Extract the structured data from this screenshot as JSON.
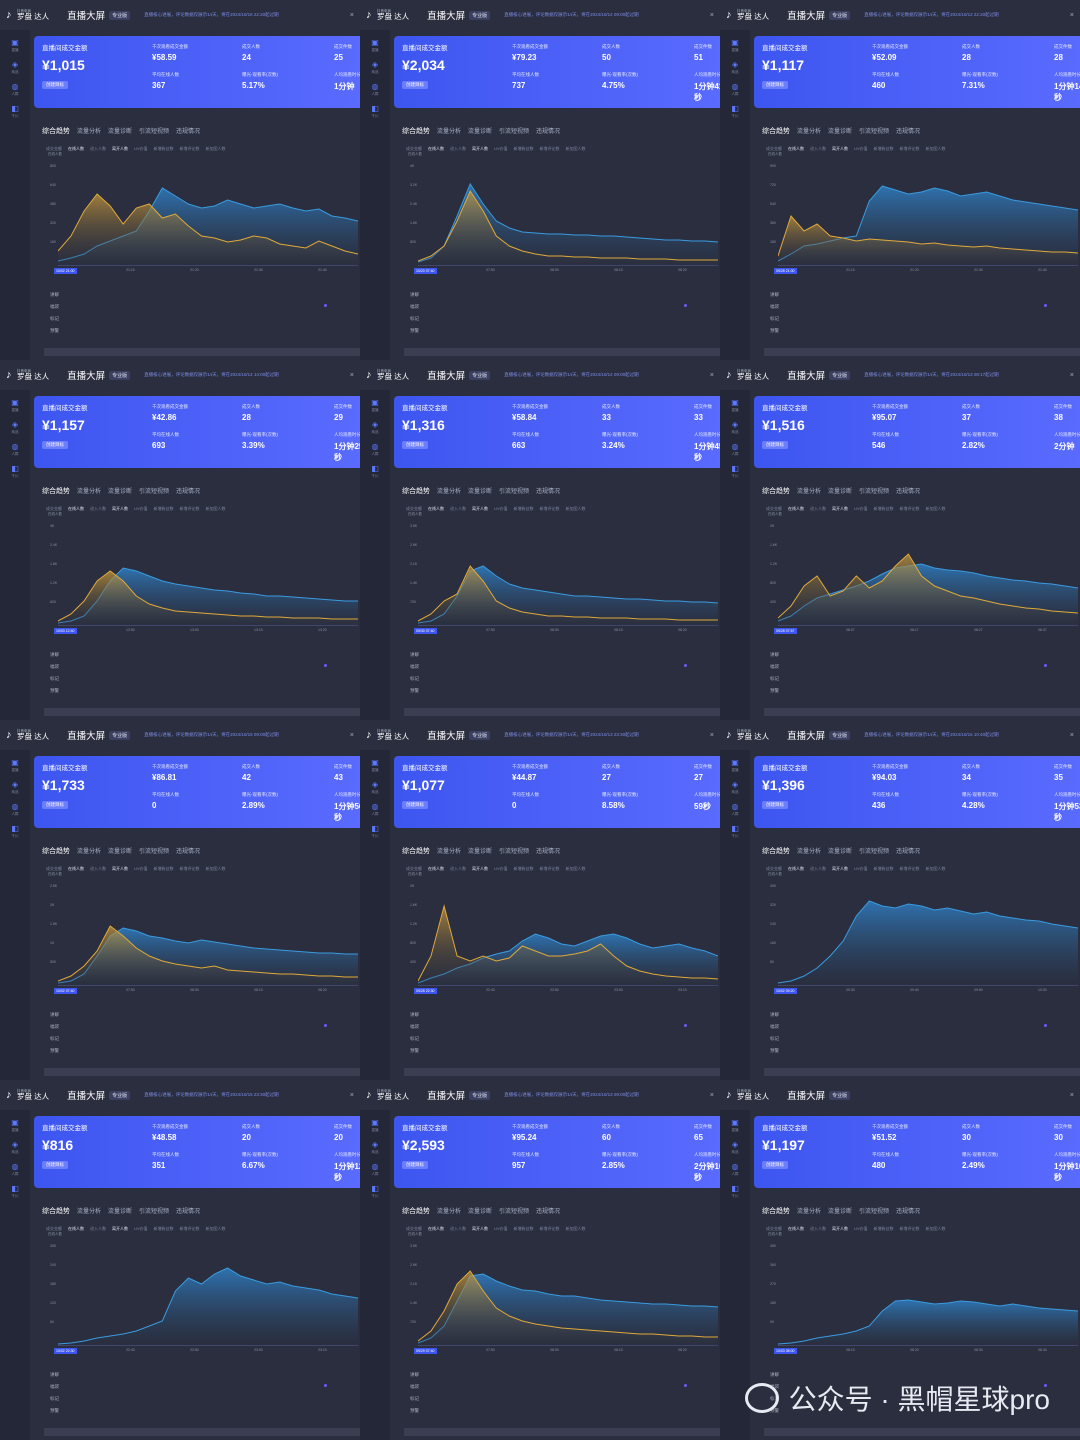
{
  "common": {
    "app_small": "抖音电商",
    "app_name": "罗盘 达人",
    "screen_title": "直播大屏",
    "version_badge": "专业版",
    "kpi_label": "直播间成交金额",
    "kpi_button": "创建目标",
    "tabs": [
      "综合趋势",
      "流量分析",
      "流量诊断",
      "引流短视频",
      "违规情况"
    ],
    "legend": [
      "成交金额",
      "在线人数",
      "进入人数",
      "离开人数",
      "UV价值",
      "新增粉丝数",
      "新增评论数",
      "新加团人数"
    ],
    "bottom_rows": [
      "讲解",
      "福袋",
      "标记",
      "预警"
    ],
    "y_title": "在线人数",
    "sidebar": [
      "直播",
      "商品",
      "人群",
      "千川"
    ],
    "labels": {
      "gpm": "千次观看成交金额",
      "orders": "成交人数",
      "pieces": "成交件数",
      "avg_online": "平均在线人数",
      "exposure": "曝光-观看率(次数)",
      "stay": "人均观看时长"
    }
  },
  "panels": [
    {
      "gmv": "¥1,015",
      "gpm": "¥58.59",
      "orders": "24",
      "pieces": "25",
      "avg_online": "367",
      "rate": "5.17%",
      "stay": "1分钟",
      "notice": "直播核心进展，评论数据仅展示14天，将在2024/10/16 22:20起过期",
      "start": "10/02 21:00",
      "xt": [
        "21:10",
        "21:20",
        "21:30",
        "21:40"
      ],
      "yt": [
        "800",
        "640",
        "480",
        "320",
        "160"
      ],
      "orange": [
        0.15,
        0.3,
        0.55,
        0.72,
        0.6,
        0.42,
        0.58,
        0.62,
        0.48,
        0.52,
        0.4,
        0.3,
        0.28,
        0.24,
        0.26,
        0.3,
        0.28,
        0.22,
        0.2,
        0.18,
        0.25,
        0.2,
        0.15,
        0.12
      ],
      "blue": [
        0.05,
        0.08,
        0.12,
        0.2,
        0.25,
        0.3,
        0.35,
        0.55,
        0.78,
        0.7,
        0.62,
        0.58,
        0.6,
        0.66,
        0.62,
        0.58,
        0.6,
        0.62,
        0.58,
        0.55,
        0.57,
        0.5,
        0.48,
        0.45
      ]
    },
    {
      "gmv": "¥2,034",
      "gpm": "¥79.23",
      "orders": "50",
      "pieces": "51",
      "avg_online": "737",
      "rate": "4.75%",
      "stay": "1分钟41秒",
      "notice": "直播核心进展，评论数据仅展示14天，将在2024/10/14 09:00起过期",
      "start": "10/20 07:40",
      "xt": [
        "07:50",
        "08:00",
        "08:10",
        "08:20"
      ],
      "yt": [
        "4K",
        "3.2K",
        "2.4K",
        "1.6K",
        "800"
      ],
      "orange": [
        0.05,
        0.1,
        0.2,
        0.45,
        0.75,
        0.55,
        0.3,
        0.2,
        0.15,
        0.12,
        0.1,
        0.1,
        0.09,
        0.09,
        0.08,
        0.08,
        0.08,
        0.07,
        0.07,
        0.07,
        0.06,
        0.06,
        0.06,
        0.06
      ],
      "blue": [
        0.04,
        0.08,
        0.2,
        0.5,
        0.82,
        0.62,
        0.45,
        0.38,
        0.34,
        0.33,
        0.32,
        0.32,
        0.31,
        0.31,
        0.3,
        0.3,
        0.29,
        0.28,
        0.27,
        0.26,
        0.26,
        0.25,
        0.25,
        0.24
      ]
    },
    {
      "gmv": "¥1,117",
      "gpm": "¥52.09",
      "orders": "28",
      "pieces": "28",
      "avg_online": "460",
      "rate": "7.31%",
      "stay": "1分钟14秒",
      "notice": "直播核心进展，评论数据仅展示14天，将在2024/10/12 22:20起过期",
      "start": "09/28 21:00",
      "xt": [
        "21:10",
        "21:20",
        "21:30",
        "21:40"
      ],
      "yt": [
        "900",
        "720",
        "540",
        "360",
        "180"
      ],
      "orange": [
        0.1,
        0.5,
        0.35,
        0.42,
        0.3,
        0.28,
        0.25,
        0.27,
        0.26,
        0.25,
        0.24,
        0.22,
        0.23,
        0.21,
        0.2,
        0.19,
        0.2,
        0.18,
        0.17,
        0.16,
        0.15,
        0.14,
        0.14,
        0.13
      ],
      "blue": [
        0.05,
        0.12,
        0.2,
        0.22,
        0.25,
        0.28,
        0.3,
        0.65,
        0.8,
        0.76,
        0.72,
        0.74,
        0.78,
        0.75,
        0.7,
        0.72,
        0.74,
        0.7,
        0.66,
        0.64,
        0.62,
        0.6,
        0.58,
        0.56
      ]
    },
    {
      "gmv": "¥1,157",
      "gpm": "¥42.86",
      "orders": "28",
      "pieces": "29",
      "avg_online": "693",
      "rate": "3.39%",
      "stay": "1分钟25秒",
      "notice": "直播核心进展，评论数据仅展示14天，将在2024/10/14 14:00起过期",
      "start": "10/03 12:40",
      "xt": [
        "12:50",
        "13:00",
        "13:10",
        "13:20"
      ],
      "yt": [
        "3K",
        "2.4K",
        "1.8K",
        "1.2K",
        "600"
      ],
      "orange": [
        0.05,
        0.12,
        0.25,
        0.45,
        0.55,
        0.45,
        0.3,
        0.22,
        0.18,
        0.15,
        0.14,
        0.13,
        0.12,
        0.11,
        0.1,
        0.1,
        0.09,
        0.09,
        0.08,
        0.08,
        0.08,
        0.07,
        0.07,
        0.07
      ],
      "blue": [
        0.03,
        0.05,
        0.1,
        0.25,
        0.45,
        0.58,
        0.55,
        0.5,
        0.45,
        0.42,
        0.4,
        0.38,
        0.36,
        0.35,
        0.33,
        0.32,
        0.3,
        0.3,
        0.29,
        0.28,
        0.27,
        0.26,
        0.25,
        0.25
      ]
    },
    {
      "gmv": "¥1,316",
      "gpm": "¥58.84",
      "orders": "33",
      "pieces": "33",
      "avg_online": "663",
      "rate": "3.24%",
      "stay": "1分钟45秒",
      "notice": "直播核心进展，评论数据仅展示14天，将在2024/10/14 09:00起过期",
      "start": "09/30 07:40",
      "xt": [
        "07:50",
        "08:00",
        "08:10",
        "08:20"
      ],
      "yt": [
        "3.5K",
        "2.8K",
        "2.1K",
        "1.4K",
        "700"
      ],
      "orange": [
        0.05,
        0.12,
        0.25,
        0.32,
        0.6,
        0.45,
        0.25,
        0.18,
        0.14,
        0.12,
        0.1,
        0.1,
        0.09,
        0.09,
        0.08,
        0.08,
        0.08,
        0.07,
        0.07,
        0.07,
        0.06,
        0.06,
        0.06,
        0.06
      ],
      "blue": [
        0.03,
        0.05,
        0.12,
        0.3,
        0.55,
        0.6,
        0.5,
        0.42,
        0.38,
        0.36,
        0.34,
        0.32,
        0.3,
        0.3,
        0.29,
        0.28,
        0.27,
        0.27,
        0.26,
        0.25,
        0.25,
        0.24,
        0.24,
        0.23
      ]
    },
    {
      "gmv": "¥1,516",
      "gpm": "¥95.07",
      "orders": "37",
      "pieces": "38",
      "avg_online": "546",
      "rate": "2.82%",
      "stay": "2分钟",
      "notice": "直播核心进展，评论数据仅展示14天，将在2024/10/13 08:17起过期",
      "start": "09/28 07:57",
      "xt": [
        "08:07",
        "08:17",
        "08:27",
        "08:37"
      ],
      "yt": [
        "2K",
        "1.6K",
        "1.2K",
        "800",
        "400"
      ],
      "orange": [
        0.08,
        0.2,
        0.4,
        0.5,
        0.3,
        0.35,
        0.5,
        0.38,
        0.45,
        0.6,
        0.72,
        0.5,
        0.4,
        0.35,
        0.3,
        0.28,
        0.25,
        0.22,
        0.2,
        0.18,
        0.17,
        0.15,
        0.14,
        0.13
      ],
      "blue": [
        0.05,
        0.1,
        0.2,
        0.28,
        0.32,
        0.36,
        0.4,
        0.45,
        0.52,
        0.58,
        0.6,
        0.62,
        0.58,
        0.56,
        0.55,
        0.53,
        0.5,
        0.48,
        0.46,
        0.45,
        0.43,
        0.42,
        0.4,
        0.38
      ]
    },
    {
      "gmv": "¥1,733",
      "gpm": "¥86.81",
      "orders": "42",
      "pieces": "43",
      "avg_online": "0",
      "rate": "2.89%",
      "stay": "1分钟56秒",
      "notice": "直播核心进展，评论数据仅展示14天，将在2024/10/15 09:00起过期",
      "start": "10/02 07:40",
      "xt": [
        "07:50",
        "08:00",
        "08:10",
        "08:20"
      ],
      "yt": [
        "2.5K",
        "2K",
        "1.5K",
        "1K",
        "500"
      ],
      "orange": [
        0.05,
        0.1,
        0.2,
        0.35,
        0.6,
        0.5,
        0.38,
        0.3,
        0.25,
        0.22,
        0.2,
        0.18,
        0.2,
        0.16,
        0.15,
        0.14,
        0.13,
        0.12,
        0.12,
        0.11,
        0.1,
        0.1,
        0.09,
        0.09
      ],
      "blue": [
        0.03,
        0.05,
        0.12,
        0.3,
        0.5,
        0.58,
        0.55,
        0.5,
        0.48,
        0.45,
        0.43,
        0.46,
        0.44,
        0.42,
        0.4,
        0.38,
        0.37,
        0.36,
        0.35,
        0.34,
        0.33,
        0.33,
        0.32,
        0.32
      ]
    },
    {
      "gmv": "¥1,077",
      "gpm": "¥44.87",
      "orders": "27",
      "pieces": "27",
      "avg_online": "0",
      "rate": "8.58%",
      "stay": "59秒",
      "notice": "直播核心进展，评论数据仅展示14天，将在2024/10/13 23:30起过期",
      "start": "09/28 22:30",
      "xt": [
        "22:40",
        "22:50",
        "23:00",
        "23:10"
      ],
      "yt": [
        "2K",
        "1.6K",
        "1.2K",
        "800",
        "400"
      ],
      "orange": [
        0.05,
        0.3,
        0.8,
        0.3,
        0.25,
        0.3,
        0.25,
        0.28,
        0.4,
        0.35,
        0.3,
        0.3,
        0.32,
        0.35,
        0.42,
        0.3,
        0.2,
        0.15,
        0.12,
        0.1,
        0.09,
        0.08,
        0.08,
        0.07
      ],
      "blue": [
        0.03,
        0.08,
        0.12,
        0.18,
        0.22,
        0.28,
        0.32,
        0.35,
        0.45,
        0.52,
        0.48,
        0.42,
        0.4,
        0.45,
        0.5,
        0.52,
        0.48,
        0.42,
        0.38,
        0.4,
        0.42,
        0.38,
        0.35,
        0.3
      ]
    },
    {
      "gmv": "¥1,396",
      "gpm": "¥94.03",
      "orders": "34",
      "pieces": "35",
      "avg_online": "436",
      "rate": "4.28%",
      "stay": "1分钟53秒",
      "notice": "直播核心进展，评论数据仅展示14天，将在2024/10/16 10:40起过期",
      "start": "10/02 09:20",
      "xt": [
        "09:30",
        "09:40",
        "09:50",
        "10:00"
      ],
      "yt": [
        "400",
        "320",
        "240",
        "160",
        "80"
      ],
      "orange": [],
      "blue": [
        0.03,
        0.05,
        0.1,
        0.18,
        0.3,
        0.45,
        0.7,
        0.85,
        0.8,
        0.78,
        0.82,
        0.8,
        0.76,
        0.78,
        0.75,
        0.72,
        0.74,
        0.7,
        0.68,
        0.66,
        0.65,
        0.62,
        0.6,
        0.58
      ]
    },
    {
      "gmv": "¥816",
      "gpm": "¥48.58",
      "orders": "20",
      "pieces": "20",
      "avg_online": "351",
      "rate": "6.67%",
      "stay": "1分钟12秒",
      "notice": "直播核心进展，评论数据仅展示14天，将在2024/10/15 23:30起过期",
      "start": "10/02 22:30",
      "xt": [
        "22:40",
        "22:50",
        "23:00",
        "23:10"
      ],
      "yt": [
        "300",
        "240",
        "180",
        "120",
        "60"
      ],
      "orange": [],
      "blue": [
        0.02,
        0.03,
        0.05,
        0.08,
        0.1,
        0.12,
        0.15,
        0.2,
        0.25,
        0.55,
        0.68,
        0.62,
        0.72,
        0.78,
        0.7,
        0.66,
        0.62,
        0.64,
        0.6,
        0.58,
        0.56,
        0.52,
        0.5,
        0.48
      ]
    },
    {
      "gmv": "¥2,593",
      "gpm": "¥95.24",
      "orders": "60",
      "pieces": "65",
      "avg_online": "957",
      "rate": "2.85%",
      "stay": "2分钟10秒",
      "notice": "直播核心进展，评论数据仅展示14天，将在2024/10/13 09:00起过期",
      "start": "09/29 07:40",
      "xt": [
        "07:50",
        "08:00",
        "08:10",
        "08:20"
      ],
      "yt": [
        "3.5K",
        "2.8K",
        "2.1K",
        "1.4K",
        "700"
      ],
      "orange": [
        0.05,
        0.15,
        0.35,
        0.62,
        0.75,
        0.55,
        0.38,
        0.3,
        0.25,
        0.22,
        0.2,
        0.18,
        0.17,
        0.16,
        0.15,
        0.14,
        0.13,
        0.12,
        0.12,
        0.11,
        0.1,
        0.1,
        0.09,
        0.09
      ],
      "blue": [
        0.03,
        0.08,
        0.2,
        0.45,
        0.7,
        0.72,
        0.65,
        0.6,
        0.56,
        0.55,
        0.52,
        0.5,
        0.5,
        0.48,
        0.46,
        0.45,
        0.44,
        0.43,
        0.42,
        0.42,
        0.41,
        0.4,
        0.4,
        0.39
      ]
    },
    {
      "gmv": "¥1,197",
      "gpm": "¥51.52",
      "orders": "30",
      "pieces": "30",
      "avg_online": "480",
      "rate": "2.49%",
      "stay": "1分钟10秒",
      "notice": "",
      "start": "10/03 08:00",
      "xt": [
        "08:10",
        "08:20",
        "08:30",
        "08:40"
      ],
      "yt": [
        "450",
        "360",
        "270",
        "180",
        "90"
      ],
      "orange": [],
      "blue": [
        0.02,
        0.03,
        0.05,
        0.08,
        0.1,
        0.12,
        0.15,
        0.2,
        0.35,
        0.45,
        0.46,
        0.44,
        0.42,
        0.43,
        0.45,
        0.44,
        0.42,
        0.4,
        0.42,
        0.4,
        0.38,
        0.37,
        0.36,
        0.35
      ]
    }
  ],
  "watermark": "公众号 · 黑帽星球pro",
  "colors": {
    "bg": "#2a2e3e",
    "blue_line": "#3a8fd8",
    "orange_line": "#d9a23a",
    "kpi": "#4a5ff6"
  }
}
